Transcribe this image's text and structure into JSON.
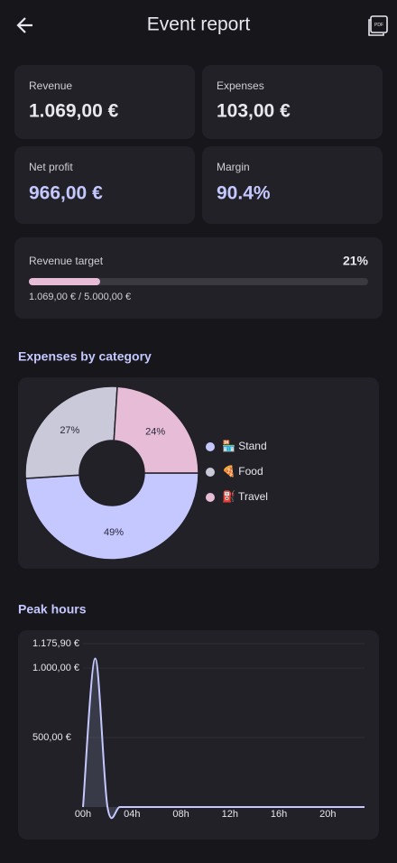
{
  "header": {
    "title": "Event report",
    "pdf_icon": "PDF"
  },
  "cards": [
    {
      "label": "Revenue",
      "value": "1.069,00 €"
    },
    {
      "label": "Expenses",
      "value": "103,00 €"
    },
    {
      "label": "Net profit",
      "value": "966,00 €"
    },
    {
      "label": "Margin",
      "value": "90.4%"
    }
  ],
  "target": {
    "label": "Revenue target",
    "percent": {
      "value": 21,
      "label": "21%"
    },
    "detail": "1.069,00 €  / 5.000,00 €"
  },
  "chart_data": [
    {
      "type": "pie",
      "title": "Expenses by category",
      "categories": [
        "🏪 Stand",
        "🍕 Food",
        "⛽ Travel"
      ],
      "values": [
        49,
        27,
        24
      ],
      "value_labels": [
        "49%",
        "27%",
        "24%"
      ],
      "colors": [
        "#c5c8ff",
        "#c9c9d9",
        "#e6bcd6"
      ]
    },
    {
      "type": "line",
      "title": "Peak hours",
      "x": [
        0,
        1,
        2,
        3,
        4,
        5,
        6,
        7,
        8,
        9,
        10,
        11,
        12,
        13,
        14,
        15,
        16,
        17,
        18,
        19,
        20,
        21,
        22,
        23
      ],
      "values": [
        0,
        1069,
        0,
        0,
        0,
        0,
        0,
        0,
        0,
        0,
        0,
        0,
        0,
        0,
        0,
        0,
        0,
        0,
        0,
        0,
        0,
        0,
        0,
        0
      ],
      "color": "#c5c8ff",
      "xlim": [
        0,
        23
      ],
      "xticks": [
        {
          "value": 0,
          "label": "00h"
        },
        {
          "value": 4,
          "label": "04h"
        },
        {
          "value": 8,
          "label": "08h"
        },
        {
          "value": 12,
          "label": "12h"
        },
        {
          "value": 16,
          "label": "16h"
        },
        {
          "value": 20,
          "label": "20h"
        }
      ],
      "ylim": [
        0,
        1175.9
      ],
      "yticks": [
        {
          "value": 500,
          "label": "500,00 €"
        },
        {
          "value": 1000,
          "label": "1.000,00 €"
        },
        {
          "value": 1175.9,
          "label": "1.175,90 €"
        }
      ],
      "grid": true
    }
  ]
}
